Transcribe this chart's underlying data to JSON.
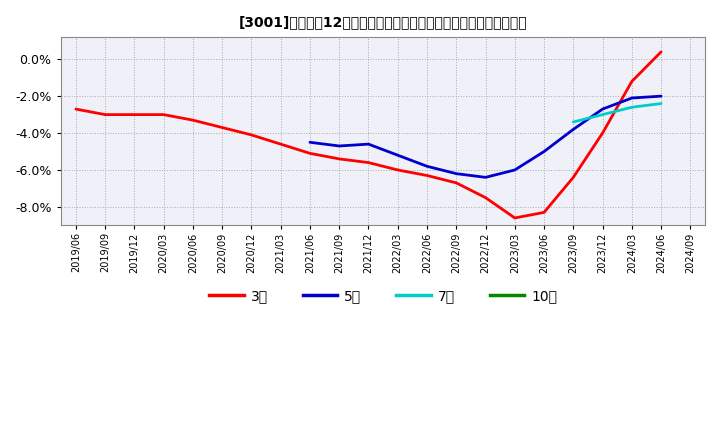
{
  "title": "[3001]　売上高12か月移動合計の対前年同期増減率の平均値の推移",
  "background_color": "#ffffff",
  "plot_bg_color": "#f0f0f8",
  "grid_color": "#aaaaaa",
  "ylim": [
    -0.09,
    0.012
  ],
  "yticks": [
    0.0,
    -0.02,
    -0.04,
    -0.06,
    -0.08
  ],
  "xlabels": [
    "2019/06",
    "2019/09",
    "2019/12",
    "2020/03",
    "2020/06",
    "2020/09",
    "2020/12",
    "2021/03",
    "2021/06",
    "2021/09",
    "2021/12",
    "2022/03",
    "2022/06",
    "2022/09",
    "2022/12",
    "2023/03",
    "2023/06",
    "2023/09",
    "2023/12",
    "2024/03",
    "2024/06",
    "2024/09"
  ],
  "series": {
    "3年": {
      "color": "#ff0000",
      "x": [
        0,
        1,
        2,
        3,
        4,
        5,
        6,
        7,
        8,
        9,
        10,
        11,
        12,
        13,
        14,
        15,
        16,
        17,
        18,
        19,
        20
      ],
      "y": [
        -0.027,
        -0.03,
        -0.03,
        -0.03,
        -0.033,
        -0.037,
        -0.041,
        -0.046,
        -0.051,
        -0.054,
        -0.056,
        -0.06,
        -0.063,
        -0.067,
        -0.075,
        -0.086,
        -0.083,
        -0.064,
        -0.04,
        -0.012,
        0.004
      ]
    },
    "5年": {
      "color": "#0000cc",
      "x": [
        8,
        9,
        10,
        11,
        12,
        13,
        14,
        15,
        16,
        17,
        18,
        19,
        20
      ],
      "y": [
        -0.045,
        -0.047,
        -0.046,
        -0.052,
        -0.058,
        -0.062,
        -0.064,
        -0.06,
        -0.05,
        -0.038,
        -0.027,
        -0.021,
        -0.02
      ]
    },
    "7年": {
      "color": "#00cccc",
      "x": [
        17,
        18,
        19,
        20
      ],
      "y": [
        -0.034,
        -0.03,
        -0.026,
        -0.024
      ]
    },
    "10年": {
      "color": "#008800",
      "x": [],
      "y": []
    }
  },
  "legend_labels": [
    "3年",
    "5年",
    "7年",
    "10年"
  ],
  "legend_colors": [
    "#ff0000",
    "#0000cc",
    "#00cccc",
    "#008800"
  ]
}
